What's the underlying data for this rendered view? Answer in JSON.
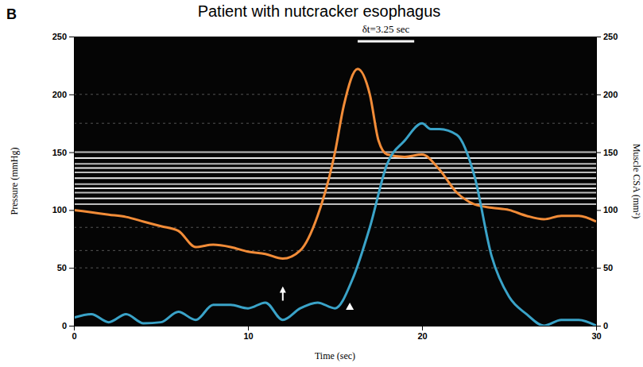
{
  "chart_data": {
    "type": "line",
    "title": "Patient with nutcracker esophagus",
    "panel": "B",
    "x_label": "Time (sec)",
    "y_label": "Pressure (mmHg)",
    "y2_label": "Muscle CSA (mm²)",
    "xlim": [
      0,
      30
    ],
    "xticks": [
      0,
      10,
      20,
      30
    ],
    "ylim": [
      0,
      250
    ],
    "yticks": [
      0,
      50,
      100,
      150,
      200,
      250
    ],
    "y2lim": [
      0,
      250
    ],
    "y2ticks": [
      0,
      50,
      100,
      150,
      200,
      250
    ],
    "grid": false,
    "series": [
      {
        "color": "#f28c38",
        "x": [
          0,
          1,
          2,
          3,
          4,
          5,
          6,
          7,
          8,
          9,
          10,
          11,
          12,
          13,
          14,
          15,
          15.5,
          16.3,
          17,
          17.5,
          18,
          19,
          20,
          21,
          22,
          23,
          24,
          25,
          26,
          27,
          28,
          29,
          30
        ],
        "values": [
          100,
          98,
          96,
          94,
          90,
          86,
          82,
          68,
          70,
          68,
          64,
          62,
          58,
          65,
          95,
          150,
          190,
          222,
          200,
          160,
          148,
          146,
          148,
          135,
          115,
          105,
          102,
          100,
          95,
          92,
          95,
          95,
          90
        ]
      },
      {
        "color": "#3aa3c8",
        "axis": "y2",
        "x": [
          0,
          1,
          2,
          3,
          4,
          5,
          6,
          7,
          8,
          9,
          10,
          11,
          12,
          13,
          14,
          15,
          16,
          17,
          18,
          19,
          20,
          20.5,
          21,
          22,
          23,
          24,
          25,
          26,
          27,
          28,
          29,
          30
        ],
        "values": [
          7,
          10,
          3,
          10,
          2,
          3,
          12,
          5,
          18,
          18,
          15,
          20,
          5,
          15,
          20,
          15,
          40,
          85,
          140,
          160,
          175,
          170,
          170,
          165,
          130,
          60,
          25,
          10,
          0,
          5,
          5,
          0
        ]
      }
    ],
    "annotations": [
      {
        "text": "δt=3.25 sec",
        "x": [
          16.3,
          19.55
        ]
      }
    ],
    "pointers": [
      {
        "x": 12,
        "y": 34,
        "marker": "arrow"
      },
      {
        "x": 15.85,
        "y": 20,
        "marker": "triangle"
      }
    ]
  }
}
